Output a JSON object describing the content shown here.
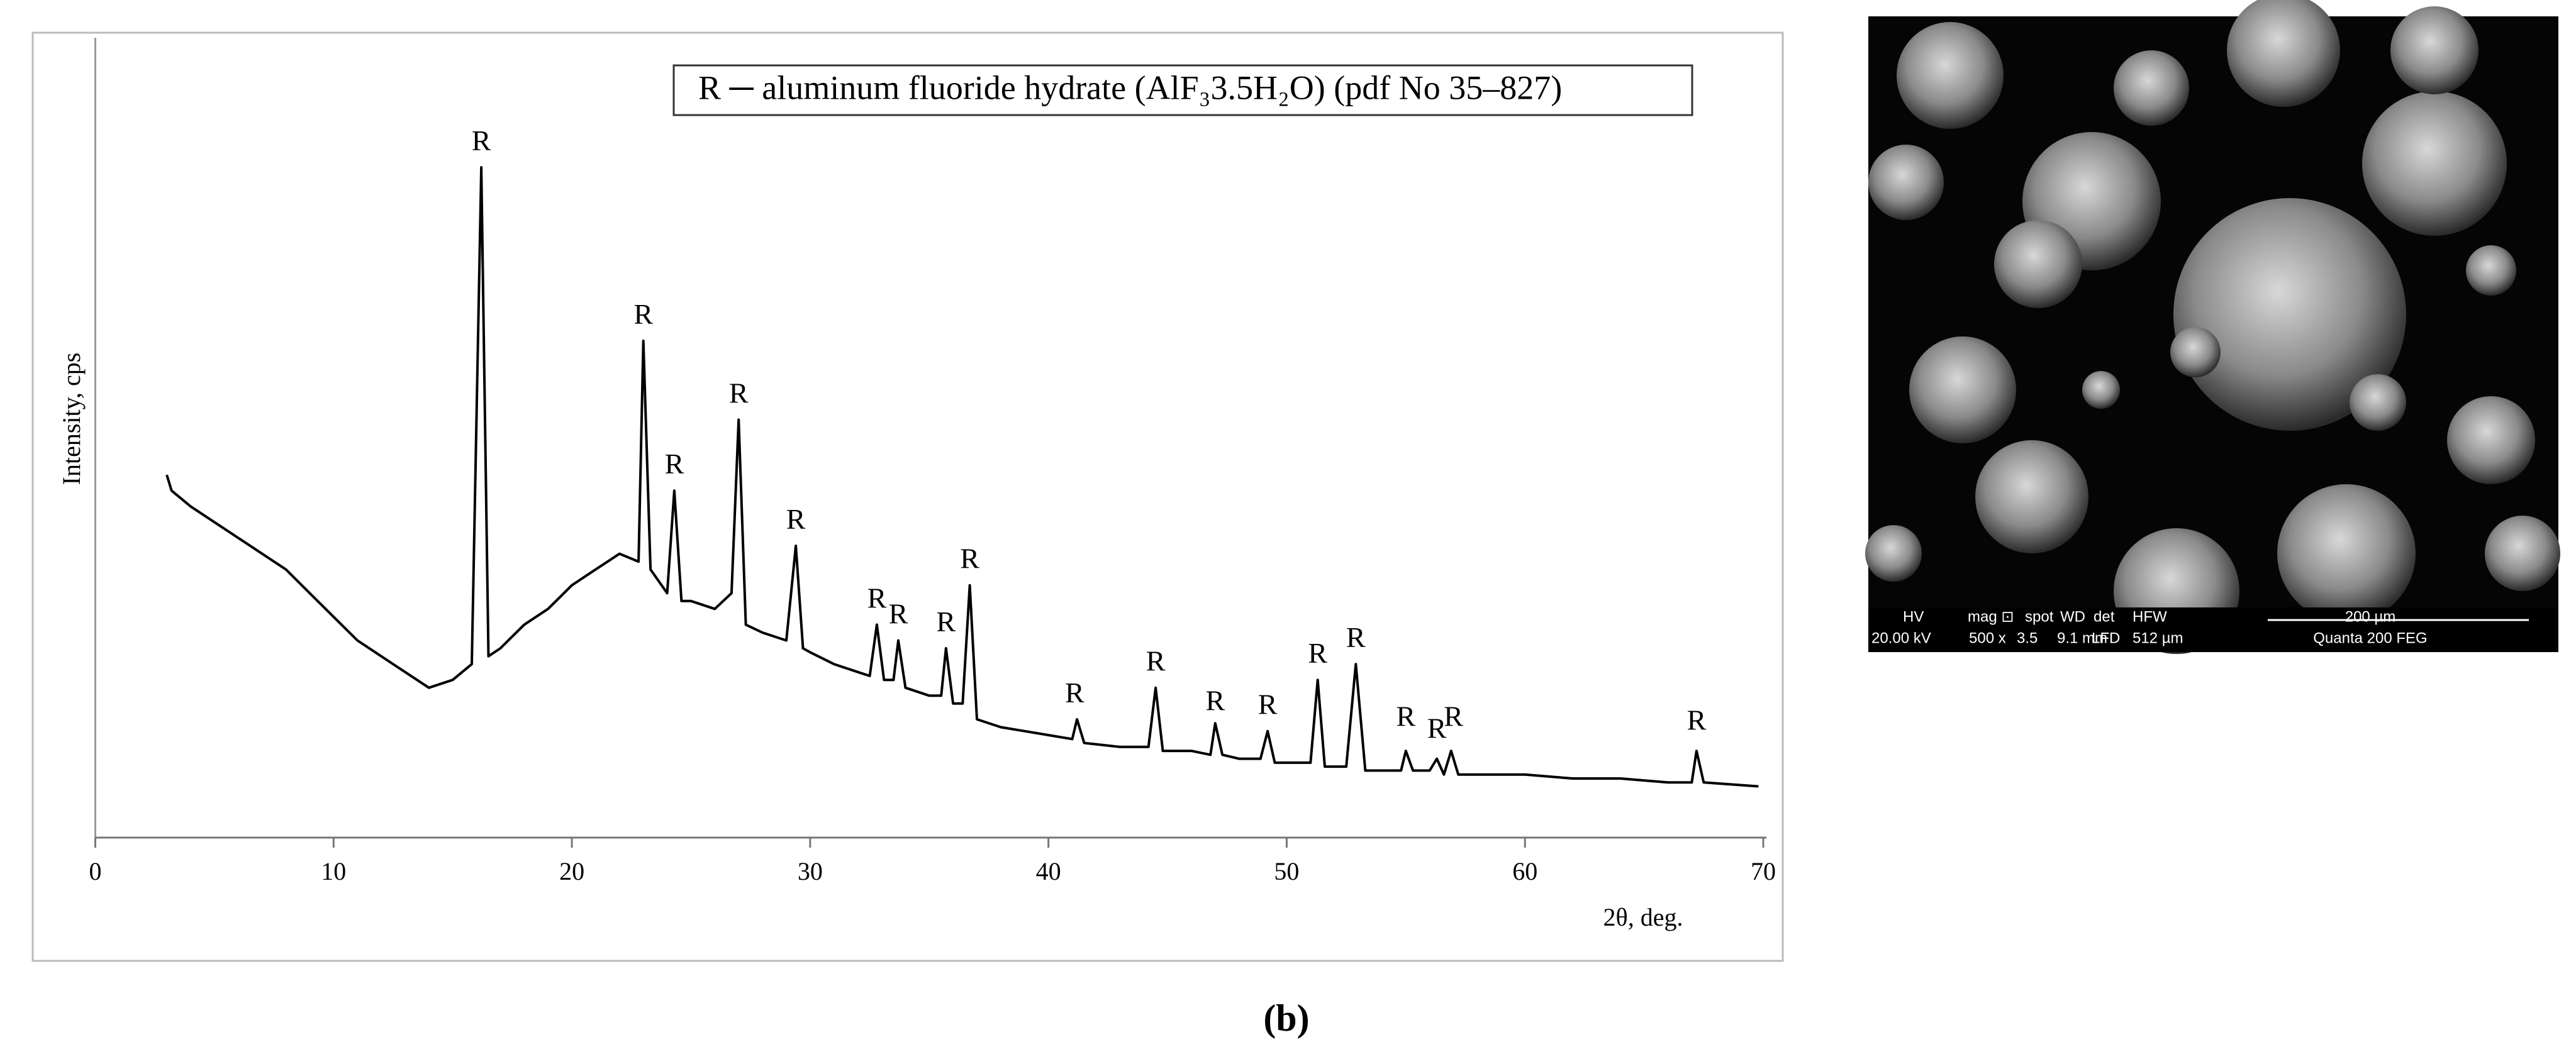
{
  "chart_data": {
    "type": "line",
    "x_label": "2θ, deg.",
    "y_label": "Intensity, cps",
    "legend_text": "R ─ aluminum fluoride hydrate (AlF₃3.5H₂O) (pdf No 35–827)",
    "xlim": [
      0,
      70
    ],
    "xticks": [
      0,
      10,
      20,
      30,
      40,
      50,
      60,
      70
    ],
    "ylim": [
      0,
      100
    ],
    "series": [
      {
        "color": "#000000",
        "x": [
          3,
          3.2,
          4,
          5,
          6,
          7,
          8,
          9,
          10,
          11,
          12,
          13,
          14,
          15,
          15.8,
          16.2,
          16.5,
          17,
          18,
          19,
          20,
          21,
          22,
          22.8,
          23,
          23.3,
          24,
          24.3,
          24.6,
          25,
          26,
          26.7,
          27,
          27.3,
          28,
          29,
          29.4,
          29.7,
          30,
          31,
          32,
          32.5,
          32.8,
          33.1,
          33.5,
          33.7,
          34,
          35,
          35.5,
          35.7,
          36,
          36.4,
          36.7,
          37,
          38,
          39,
          40,
          41,
          41.2,
          41.5,
          43,
          44.2,
          44.5,
          44.8,
          46,
          46.8,
          47,
          47.3,
          48,
          48.9,
          49.2,
          49.5,
          50,
          51,
          51.3,
          51.6,
          52.5,
          52.9,
          53.3,
          54,
          54.8,
          55,
          55.3,
          56,
          56.3,
          56.6,
          56.9,
          57.2,
          58,
          60,
          62,
          64,
          66,
          67,
          67.2,
          67.5,
          69.8
        ],
        "values": [
          46,
          44,
          42,
          40,
          38,
          36,
          34,
          31,
          28,
          25,
          23,
          21,
          19,
          20,
          22,
          85,
          23,
          24,
          27,
          29,
          32,
          34,
          36,
          35,
          63,
          34,
          31,
          44,
          30,
          30,
          29,
          31,
          53,
          27,
          26,
          25,
          37,
          24,
          23.5,
          22,
          21,
          20.5,
          27,
          20,
          20,
          25,
          19,
          18,
          18,
          24,
          17,
          17,
          32,
          15,
          14,
          13.5,
          13,
          12.5,
          15,
          12,
          11.5,
          11.5,
          19,
          11,
          11,
          10.5,
          14.5,
          10.5,
          10,
          10,
          13.5,
          9.5,
          9.5,
          9.5,
          20,
          9,
          9,
          22,
          8.5,
          8.5,
          8.5,
          11,
          8.5,
          8.5,
          10,
          8,
          11,
          8,
          8,
          8,
          7.5,
          7.5,
          7,
          7,
          11,
          7,
          6.5
        ]
      }
    ],
    "annotations": [
      {
        "text": "R",
        "x": 16.2,
        "y": 88
      },
      {
        "text": "R",
        "x": 23,
        "y": 66
      },
      {
        "text": "R",
        "x": 24.3,
        "y": 47
      },
      {
        "text": "R",
        "x": 27,
        "y": 56
      },
      {
        "text": "R",
        "x": 29.4,
        "y": 40
      },
      {
        "text": "R",
        "x": 32.8,
        "y": 30
      },
      {
        "text": "R",
        "x": 33.7,
        "y": 28
      },
      {
        "text": "R",
        "x": 35.7,
        "y": 27
      },
      {
        "text": "R",
        "x": 36.7,
        "y": 35
      },
      {
        "text": "R",
        "x": 41.1,
        "y": 18
      },
      {
        "text": "R",
        "x": 44.5,
        "y": 22
      },
      {
        "text": "R",
        "x": 47,
        "y": 17
      },
      {
        "text": "R",
        "x": 49.2,
        "y": 16.5
      },
      {
        "text": "R",
        "x": 51.3,
        "y": 23
      },
      {
        "text": "R",
        "x": 52.9,
        "y": 25
      },
      {
        "text": "R",
        "x": 55,
        "y": 15
      },
      {
        "text": "R",
        "x": 56.3,
        "y": 13.5
      },
      {
        "text": "R",
        "x": 57,
        "y": 15
      },
      {
        "text": "R",
        "x": 67.2,
        "y": 14.5
      }
    ]
  },
  "sem_info": {
    "header": [
      "HV",
      "mag ⊡",
      "spot",
      "WD",
      "det",
      "HFW",
      "200 µm"
    ],
    "values": [
      "20.00 kV",
      "500 x",
      "3.5",
      "9.1 mm",
      "LFD",
      "512 µm",
      "Quanta 200 FEG"
    ]
  },
  "figure_label": "(b)"
}
